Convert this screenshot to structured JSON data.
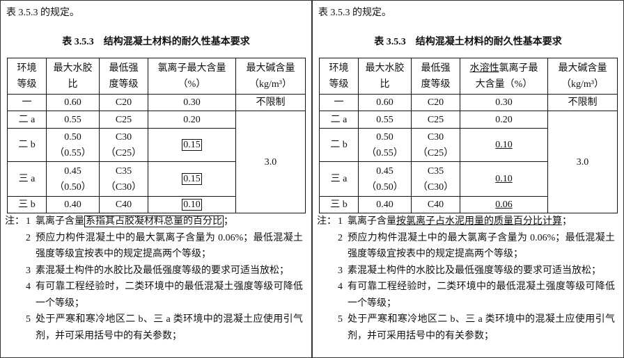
{
  "panels": [
    {
      "intro": "表 3.5.3 的规定。",
      "table_title": "表 3.5.3　结构混凝土材料的耐久性基本要求",
      "header": [
        [
          "环境",
          "等级"
        ],
        [
          "最大水胶",
          "比"
        ],
        [
          "最低强",
          "度等级"
        ],
        [
          "氯离子最大含量",
          "（%）"
        ],
        [
          "最大碱含量",
          "（kg/m³）"
        ]
      ],
      "rows": [
        [
          "一",
          "0.60",
          "C20",
          "0.30",
          "不限制"
        ],
        [
          "二 a",
          "0.55",
          "C25",
          "0.20"
        ],
        [
          "二 b",
          [
            "0.50",
            "（0.55）"
          ],
          [
            "C30",
            "（C25）"
          ],
          "0.15"
        ],
        [
          "三 a",
          [
            "0.45",
            "（0.50）"
          ],
          [
            "C35",
            "（C30）"
          ],
          "0.15"
        ],
        [
          "三 b",
          "0.40",
          "C40",
          "0.10"
        ]
      ],
      "alkali_merged": "3.0",
      "notes_label": "注：",
      "notes": [
        {
          "num": "1",
          "parts": [
            "氯离子含量",
            "系指其占胶凝材料总量的百分比",
            "；"
          ]
        },
        {
          "num": "2",
          "text": "预应力构件混凝土中的最大氯离子含量为 0.06%；最低混凝土强度等级宜按表中的规定提高两个等级；"
        },
        {
          "num": "3",
          "text": "素混凝土构件的水胶比及最低强度等级的要求可适当放松；"
        },
        {
          "num": "4",
          "text": "有可靠工程经验时，二类环境中的最低混凝土强度等级可降低一个等级；"
        },
        {
          "num": "5",
          "text": "处于严寒和寒冷地区二 b、三 a 类环境中的混凝土应使用引气剂，并可采用括号中的有关参数；"
        }
      ]
    },
    {
      "intro": "表 3.5.3 的规定。",
      "table_title": "表 3.5.3　结构混凝土材料的耐久性基本要求",
      "header": [
        [
          "环境",
          "等级"
        ],
        [
          "最大水胶",
          "比"
        ],
        [
          "最低强",
          "度等级"
        ],
        [
          [
            "水溶性",
            "氯离子最"
          ],
          "大含量（%）"
        ],
        [
          "最大碱含量",
          "（kg/m³）"
        ]
      ],
      "rows": [
        [
          "一",
          "0.60",
          "C20",
          "0.30",
          "不限制"
        ],
        [
          "二 a",
          "0.55",
          "C25",
          "0.20"
        ],
        [
          "二 b",
          [
            "0.50",
            "（0.55）"
          ],
          [
            "C30",
            "（C25）"
          ],
          "0.10"
        ],
        [
          "三 a",
          [
            "0.45",
            "（0.50）"
          ],
          [
            "C35",
            "（C30）"
          ],
          "0.10"
        ],
        [
          "三 b",
          "0.40",
          "C40",
          "0.06"
        ]
      ],
      "alkali_merged": "3.0",
      "notes_label": "注：",
      "notes": [
        {
          "num": "1",
          "parts": [
            "氯离子含量",
            "按氯离子占水泥用量的质量百分比计算",
            "；"
          ]
        },
        {
          "num": "2",
          "text": "预应力构件混凝土中的最大氯离子含量为 0.06%；最低混凝土强度等级宜按表中的规定提高两个等级；"
        },
        {
          "num": "3",
          "text": "素混凝土构件的水胶比及最低强度等级的要求可适当放松；"
        },
        {
          "num": "4",
          "text": "有可靠工程经验时，二类环境中的最低混凝土强度等级可降低一个等级；"
        },
        {
          "num": "5",
          "text": "处于严寒和寒冷地区二 b、三 a 类环境中的混凝土应使用引气剂，并可采用括号中的有关参数；"
        }
      ]
    }
  ]
}
